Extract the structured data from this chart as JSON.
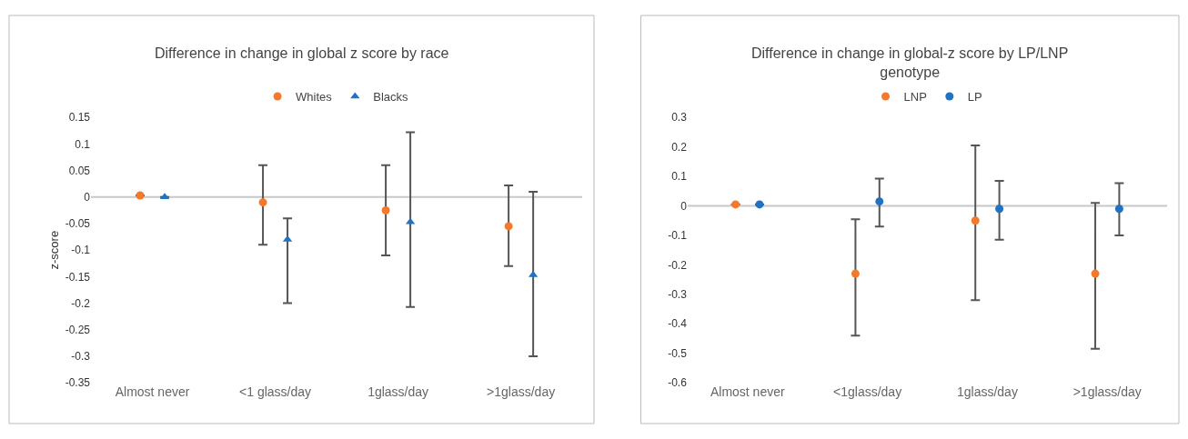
{
  "chart_data": [
    {
      "type": "scatter",
      "title": "Difference in change in global z score by race",
      "ylabel": "z-score",
      "categories": [
        "Almost never",
        "<1 glass/day",
        "1glass/day",
        ">1glass/day"
      ],
      "ylim": [
        -0.35,
        0.15
      ],
      "yticks": [
        {
          "value": -0.35,
          "label": "-0.35"
        },
        {
          "value": -0.3,
          "label": "-0.3"
        },
        {
          "value": -0.25,
          "label": "-0.25"
        },
        {
          "value": -0.2,
          "label": "-0.2"
        },
        {
          "value": -0.15,
          "label": "-0.15"
        },
        {
          "value": -0.1,
          "label": "-0.1"
        },
        {
          "value": -0.05,
          "label": "-0.05"
        },
        0,
        0.05,
        0.1,
        0.15
      ],
      "grid": false,
      "legend": "top",
      "ref_lines": [
        {
          "axis": "y",
          "value": 0,
          "color": "#c8c8c8"
        }
      ],
      "series": [
        {
          "name": "Whites",
          "color": "#f5792a",
          "marker": "circle",
          "values": [
            0.003,
            -0.01,
            -0.025,
            -0.055
          ],
          "errors": [
            null,
            [
              -0.09,
              0.06
            ],
            [
              -0.11,
              0.06
            ],
            [
              -0.13,
              0.022
            ]
          ]
        },
        {
          "name": "Blacks",
          "color": "#1f72c4",
          "marker": "triangle",
          "values": [
            0.0,
            -0.08,
            -0.047,
            -0.147
          ],
          "errors": [
            null,
            [
              -0.2,
              -0.04
            ],
            [
              -0.207,
              0.122
            ],
            [
              -0.3,
              0.01
            ]
          ]
        }
      ]
    },
    {
      "type": "scatter",
      "title": "Difference in change in global-z score by LP/LNP genotype",
      "categories": [
        "Almost never",
        "<1glass/day",
        "1glass/day",
        ">1glass/day"
      ],
      "ylim": [
        -0.6,
        0.3
      ],
      "yticks": [
        {
          "value": -0.6,
          "label": "-0.6"
        },
        {
          "value": -0.5,
          "label": "-0.5"
        },
        {
          "value": -0.4,
          "label": "-0.4"
        },
        {
          "value": -0.3,
          "label": "-0.3"
        },
        {
          "value": -0.2,
          "label": "-0.2"
        },
        {
          "value": -0.1,
          "label": "-0.1"
        },
        0,
        0.1,
        0.2,
        0.3
      ],
      "grid": false,
      "legend": "top",
      "ref_lines": [
        {
          "axis": "y",
          "value": 0,
          "color": "#c8c8c8"
        }
      ],
      "series": [
        {
          "name": "LNP",
          "color": "#f5792a",
          "marker": "circle",
          "values": [
            0.005,
            -0.23,
            -0.05,
            -0.23
          ],
          "errors": [
            null,
            [
              -0.44,
              -0.045
            ],
            [
              -0.32,
              0.205
            ],
            [
              -0.485,
              0.01
            ]
          ]
        },
        {
          "name": "LP",
          "color": "#1f72c4",
          "marker": "circle",
          "values": [
            0.005,
            0.015,
            -0.01,
            -0.01
          ],
          "errors": [
            null,
            [
              -0.07,
              0.093
            ],
            [
              -0.115,
              0.085
            ],
            [
              -0.1,
              0.077
            ]
          ]
        }
      ]
    }
  ]
}
